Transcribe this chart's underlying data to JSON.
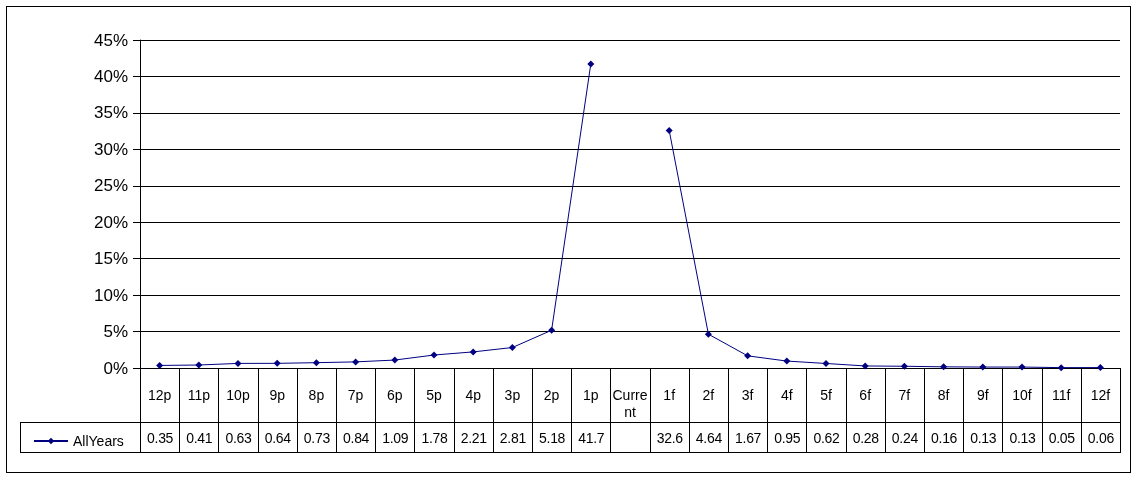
{
  "chart_data": {
    "type": "line",
    "categories": [
      "12p",
      "11p",
      "10p",
      "9p",
      "8p",
      "7p",
      "6p",
      "5p",
      "4p",
      "3p",
      "2p",
      "1p",
      "Current",
      "1f",
      "2f",
      "3f",
      "4f",
      "5f",
      "6f",
      "7f",
      "8f",
      "9f",
      "10f",
      "11f",
      "12f"
    ],
    "series": [
      {
        "name": "AllYears",
        "color": "#000080",
        "values": [
          0.35,
          0.41,
          0.63,
          0.64,
          0.73,
          0.84,
          1.09,
          1.78,
          2.21,
          2.81,
          5.18,
          41.7,
          null,
          32.6,
          4.64,
          1.67,
          0.95,
          0.62,
          0.28,
          0.24,
          0.16,
          0.13,
          0.13,
          0.05,
          0.06
        ]
      }
    ],
    "ylim": [
      0,
      45
    ],
    "yticks": [
      {
        "value": 0,
        "label": "0%"
      },
      {
        "value": 5,
        "label": "5%"
      },
      {
        "value": 10,
        "label": "10%"
      },
      {
        "value": 15,
        "label": "15%"
      },
      {
        "value": 20,
        "label": "20%"
      },
      {
        "value": 25,
        "label": "25%"
      },
      {
        "value": 30,
        "label": "30%"
      },
      {
        "value": 35,
        "label": "35%"
      },
      {
        "value": 40,
        "label": "40%"
      },
      {
        "value": 45,
        "label": "45%"
      }
    ],
    "grid": "y",
    "legend": "bottom left",
    "marker": "diamond",
    "line_style": "solid",
    "data_labels": true
  }
}
